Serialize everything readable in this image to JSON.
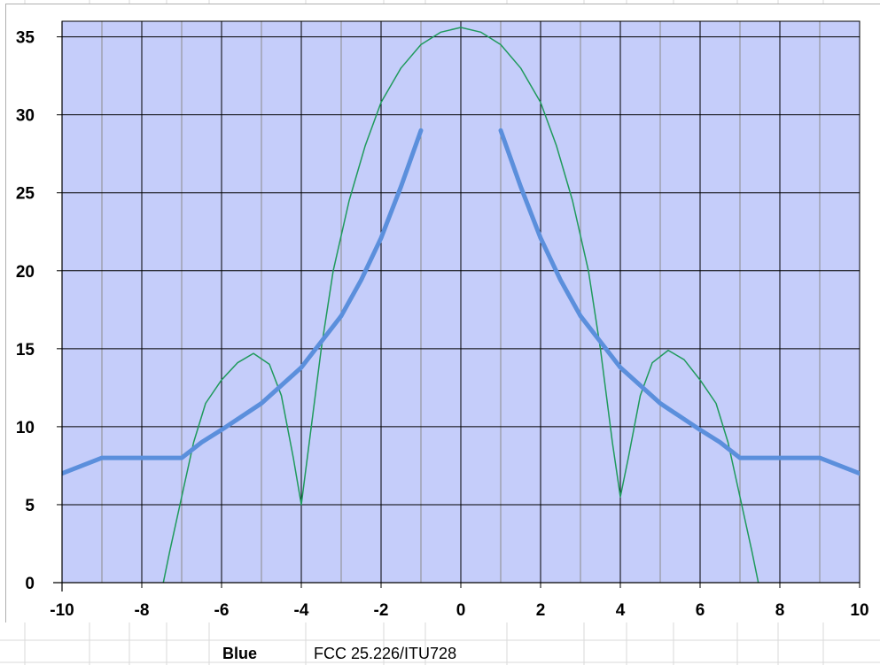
{
  "chart_data": {
    "type": "line",
    "title": "",
    "xlabel": "",
    "ylabel": "",
    "xlim": [
      -10,
      10
    ],
    "ylim": [
      0,
      36
    ],
    "x_ticks": [
      -10,
      -8,
      -6,
      -4,
      -2,
      0,
      2,
      4,
      6,
      8,
      10
    ],
    "y_ticks": [
      0,
      5,
      10,
      15,
      20,
      25,
      30,
      35
    ],
    "grid": true,
    "colors": {
      "plot_background": "#c5cdfa",
      "major_grid": "#000000",
      "minor_grid": "#8a8a8a",
      "mask_line": "#5b8fdc",
      "pattern_line": "#1f9a5c"
    },
    "series": [
      {
        "segments": [
          [
            [
              -10,
              7
            ],
            [
              -9,
              8
            ],
            [
              -7,
              8
            ],
            [
              -6.5,
              9
            ],
            [
              -6,
              9.8
            ],
            [
              -5,
              11.5
            ],
            [
              -4,
              13.8
            ],
            [
              -3,
              17.1
            ],
            [
              -2.5,
              19.4
            ],
            [
              -2,
              22.1
            ],
            [
              -1.5,
              25.4
            ],
            [
              -1,
              29
            ]
          ],
          [
            [
              1,
              29
            ],
            [
              1.5,
              25.4
            ],
            [
              2,
              22.1
            ],
            [
              2.5,
              19.4
            ],
            [
              3,
              17.1
            ],
            [
              4,
              13.8
            ],
            [
              5,
              11.5
            ],
            [
              6,
              9.8
            ],
            [
              6.5,
              9
            ],
            [
              7,
              8
            ],
            [
              9,
              8
            ],
            [
              10,
              7
            ]
          ]
        ]
      },
      {
        "points": [
          [
            -7.5,
            -0.5
          ],
          [
            -7.3,
            2
          ],
          [
            -7,
            5.5
          ],
          [
            -6.7,
            9
          ],
          [
            -6.4,
            11.5
          ],
          [
            -6,
            13
          ],
          [
            -5.6,
            14.1
          ],
          [
            -5.2,
            14.7
          ],
          [
            -4.8,
            14
          ],
          [
            -4.5,
            12
          ],
          [
            -4.2,
            8
          ],
          [
            -4,
            5
          ],
          [
            -3.8,
            9
          ],
          [
            -3.5,
            15
          ],
          [
            -3.2,
            20
          ],
          [
            -2.8,
            24.5
          ],
          [
            -2.4,
            28
          ],
          [
            -2,
            30.8
          ],
          [
            -1.5,
            33
          ],
          [
            -1,
            34.5
          ],
          [
            -0.5,
            35.3
          ],
          [
            0,
            35.6
          ],
          [
            0.5,
            35.3
          ],
          [
            1,
            34.5
          ],
          [
            1.5,
            33
          ],
          [
            2,
            30.8
          ],
          [
            2.4,
            28
          ],
          [
            2.8,
            24.5
          ],
          [
            3.2,
            20
          ],
          [
            3.5,
            15
          ],
          [
            3.8,
            9
          ],
          [
            4,
            5.5
          ],
          [
            4.2,
            8
          ],
          [
            4.5,
            12
          ],
          [
            4.8,
            14.1
          ],
          [
            5.2,
            14.9
          ],
          [
            5.6,
            14.3
          ],
          [
            6,
            13
          ],
          [
            6.4,
            11.5
          ],
          [
            6.7,
            9
          ],
          [
            7,
            5.5
          ],
          [
            7.3,
            2
          ],
          [
            7.5,
            -0.5
          ]
        ]
      }
    ]
  },
  "legend": {
    "key_label": "Blue",
    "key_description": "FCC 25.226/ITU728"
  }
}
